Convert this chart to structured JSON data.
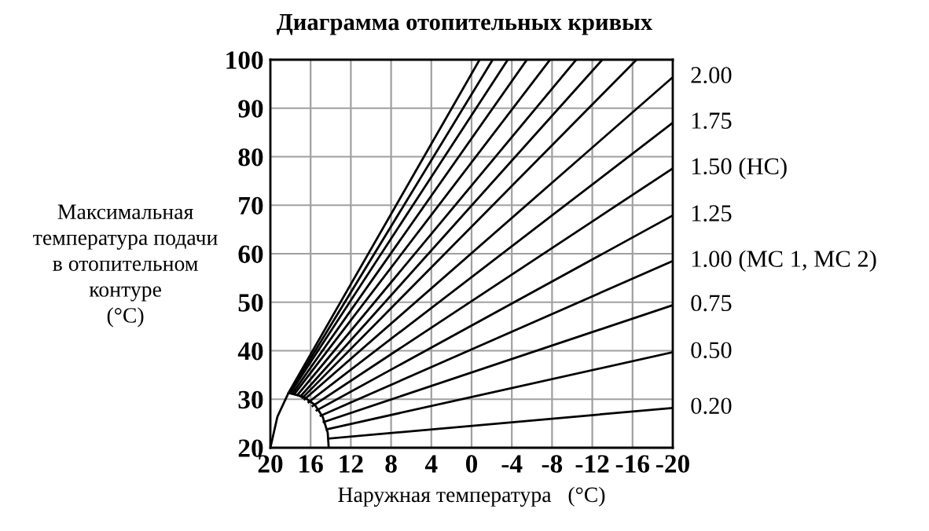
{
  "chart_data": {
    "type": "line",
    "title": "Диаграмма отопительных кривых",
    "xlabel": "Наружная температура   (°C)",
    "ylabel": "Максимальная\nтемпература подачи\nв отопительном\nконтуре\n(°C)",
    "xlim": [
      20,
      -20
    ],
    "xticks": [
      20,
      16,
      12,
      8,
      4,
      0,
      -4,
      -8,
      -12,
      -16,
      -20
    ],
    "ylim": [
      20,
      100
    ],
    "yticks": [
      20,
      30,
      40,
      50,
      60,
      70,
      80,
      90,
      100
    ],
    "grid": true,
    "marker": "none",
    "line_style": "solid",
    "series": [
      {
        "color": "#000000",
        "x": [
          20.0,
          19.3,
          18.2,
          16.7,
          15.6,
          14.8,
          14.3,
          14.2
        ],
        "values": [
          20.0,
          26.4,
          31.3,
          30.5,
          28.9,
          26.4,
          23.1,
          20.0
        ]
      },
      {
        "color": "#000000",
        "x": [
          18.2,
          -0.8
        ],
        "values": [
          31.3,
          100
        ]
      },
      {
        "color": "#000000",
        "x": [
          18.1,
          -2.1
        ],
        "values": [
          31.3,
          100
        ]
      },
      {
        "color": "#000000",
        "x": [
          18.0,
          -3.6
        ],
        "values": [
          31.3,
          100
        ]
      },
      {
        "color": "#000000",
        "x": [
          17.8,
          -5.5
        ],
        "values": [
          31.2,
          100
        ]
      },
      {
        "color": "#000000",
        "x": [
          17.6,
          -7.8
        ],
        "values": [
          31.1,
          100
        ]
      },
      {
        "color": "#000000",
        "x": [
          17.3,
          -10.4
        ],
        "values": [
          30.9,
          100
        ]
      },
      {
        "color": "#000000",
        "x": [
          17.0,
          -13.0
        ],
        "values": [
          30.6,
          100
        ]
      },
      {
        "color": "#000000",
        "x": [
          16.8,
          -16.4
        ],
        "values": [
          30.3,
          100
        ]
      },
      {
        "name": "2.00",
        "color": "#000000",
        "x": [
          16.6,
          -20
        ],
        "values": [
          30.0,
          96.4
        ]
      },
      {
        "name": "1.75",
        "color": "#000000",
        "x": [
          16.2,
          -20
        ],
        "values": [
          29.4,
          87.0
        ]
      },
      {
        "name": "1.50 (HC)",
        "color": "#000000",
        "x": [
          15.8,
          -20
        ],
        "values": [
          28.6,
          77.6
        ]
      },
      {
        "name": "1.25",
        "color": "#000000",
        "x": [
          15.4,
          -20
        ],
        "values": [
          27.7,
          67.9
        ]
      },
      {
        "name": "1.00 (MC 1, MC 2)",
        "color": "#000000",
        "x": [
          15.0,
          -20
        ],
        "values": [
          26.6,
          58.5
        ]
      },
      {
        "name": "0.75",
        "color": "#000000",
        "x": [
          14.7,
          -20
        ],
        "values": [
          25.3,
          49.4
        ]
      },
      {
        "name": "0.50",
        "color": "#000000",
        "x": [
          14.4,
          -20
        ],
        "values": [
          23.8,
          39.7
        ]
      },
      {
        "name": "0.20",
        "color": "#000000",
        "x": [
          14.2,
          -20
        ],
        "values": [
          21.9,
          28.2
        ]
      }
    ]
  }
}
